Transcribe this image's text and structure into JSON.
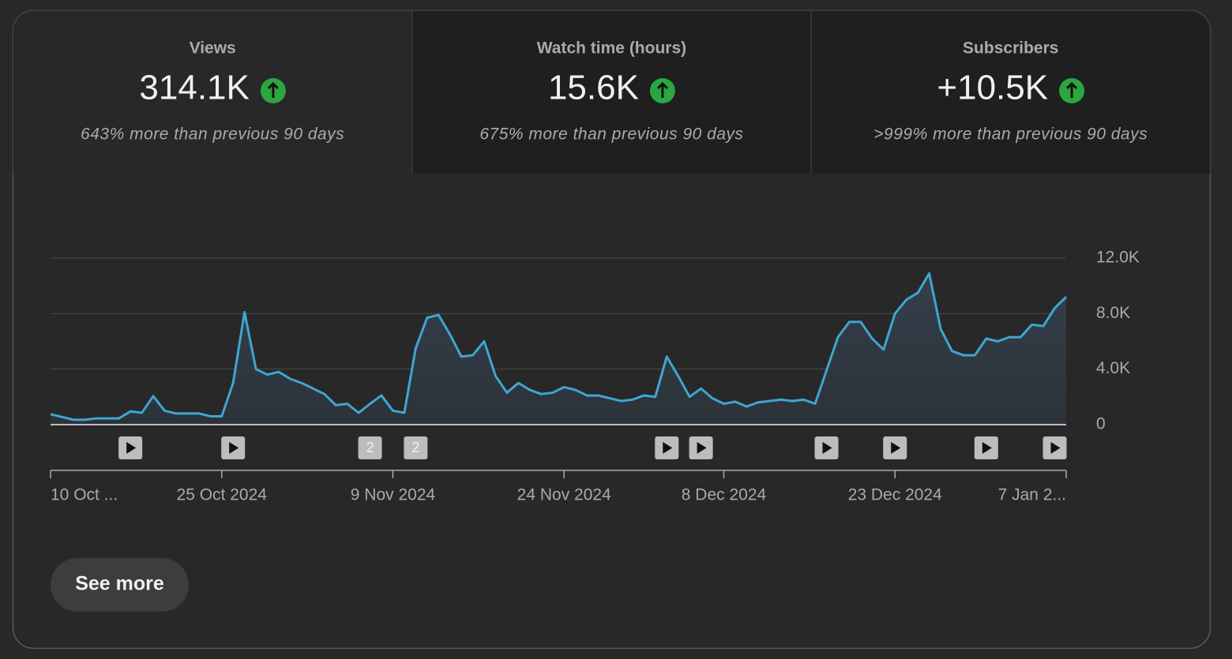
{
  "cards": [
    {
      "title": "Views",
      "value": "314.1K",
      "comparison": "643% more than previous 90 days"
    },
    {
      "title": "Watch time (hours)",
      "value": "15.6K",
      "comparison": "675% more than previous 90 days"
    },
    {
      "title": "Subscribers",
      "value": "+10.5K",
      "comparison": ">999% more than previous 90 days"
    }
  ],
  "chart_data": {
    "type": "line",
    "color": "#3ea6d0",
    "area": true,
    "categories": [
      "10 Oct ...",
      null,
      null,
      null,
      null,
      null,
      null,
      null,
      null,
      null,
      null,
      null,
      null,
      null,
      null,
      "25 Oct 2024",
      null,
      null,
      null,
      null,
      null,
      null,
      null,
      null,
      null,
      null,
      null,
      null,
      null,
      null,
      "9 Nov 2024",
      null,
      null,
      null,
      null,
      null,
      null,
      null,
      null,
      null,
      null,
      null,
      null,
      null,
      null,
      "24 Nov 2024",
      null,
      null,
      null,
      null,
      null,
      null,
      null,
      null,
      null,
      null,
      null,
      null,
      null,
      "8 Dec 2024",
      null,
      null,
      null,
      null,
      null,
      null,
      null,
      null,
      null,
      null,
      null,
      null,
      null,
      null,
      "23 Dec 2024",
      null,
      null,
      null,
      null,
      null,
      null,
      null,
      null,
      null,
      null,
      null,
      null,
      null,
      null,
      "7 Jan 2..."
    ],
    "values": [
      750,
      550,
      350,
      350,
      450,
      450,
      450,
      950,
      850,
      2050,
      1000,
      800,
      800,
      800,
      600,
      600,
      3000,
      8100,
      4000,
      3600,
      3800,
      3300,
      3000,
      2600,
      2200,
      1400,
      1500,
      850,
      1500,
      2100,
      1000,
      850,
      5500,
      7700,
      7900,
      6500,
      4900,
      5000,
      6000,
      3500,
      2300,
      3000,
      2500,
      2200,
      2300,
      2700,
      2500,
      2100,
      2100,
      1900,
      1700,
      1800,
      2100,
      2000,
      4900,
      3500,
      2000,
      2600,
      1900,
      1500,
      1650,
      1300,
      1600,
      1700,
      1800,
      1700,
      1800,
      1500,
      3900,
      6300,
      7400,
      7400,
      6200,
      5400,
      8000,
      9000,
      9500,
      10900,
      6900,
      5300,
      5000,
      5000,
      6200,
      6000,
      6300,
      6300,
      7200,
      7100,
      8400,
      9200
    ],
    "ylim": [
      0,
      12000
    ],
    "yticks": [
      0,
      {
        "value": 4000,
        "label": "4.0K"
      },
      {
        "value": 8000,
        "label": "8.0K"
      },
      {
        "value": 12000,
        "label": "12.0K"
      }
    ],
    "grid": true,
    "video_markers": [
      {
        "x": 7
      },
      {
        "x": 16
      },
      {
        "x": 28,
        "label": "2"
      },
      {
        "x": 32,
        "label": "2"
      },
      {
        "x": 54
      },
      {
        "x": 57
      },
      {
        "x": 68
      },
      {
        "x": 74
      },
      {
        "x": 82
      },
      {
        "x": 88
      }
    ]
  },
  "button": "See more"
}
